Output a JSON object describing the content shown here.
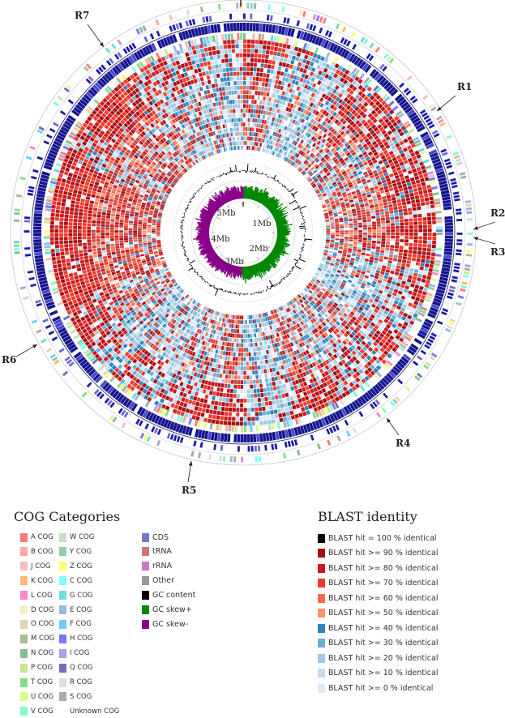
{
  "map": {
    "scale_labels": [
      "1Mb",
      "2Mb",
      "3Mb",
      "4Mb",
      "5Mb"
    ],
    "region_labels": [
      "R1",
      "R2",
      "R3",
      "R4",
      "R5",
      "R6",
      "R7"
    ],
    "colors": {
      "cds": "#14149a",
      "gc_content": "#000000",
      "gc_skew_plus": "#008800",
      "gc_skew_minus": "#880088",
      "ring_line": "#bbbbbb"
    }
  },
  "cog_legend": {
    "title": "COG Categories",
    "items": [
      {
        "label": "A COG",
        "color": "#ff7b7b"
      },
      {
        "label": "B COG",
        "color": "#ffaa9c"
      },
      {
        "label": "J COG",
        "color": "#f7bcc3"
      },
      {
        "label": "K COG",
        "color": "#ffb876"
      },
      {
        "label": "L COG",
        "color": "#ff86c8"
      },
      {
        "label": "D COG",
        "color": "#f6efc2"
      },
      {
        "label": "O COG",
        "color": "#ddd8b0"
      },
      {
        "label": "M COG",
        "color": "#a9bf8a"
      },
      {
        "label": "N COG",
        "color": "#86be8e"
      },
      {
        "label": "P COG",
        "color": "#c9e690"
      },
      {
        "label": "T COG",
        "color": "#88dd88"
      },
      {
        "label": "U COG",
        "color": "#d9ff8a"
      },
      {
        "label": "V COG",
        "color": "#80ffc8"
      },
      {
        "label": "W COG",
        "color": "#c8dec8"
      },
      {
        "label": "Y COG",
        "color": "#90d0a8"
      },
      {
        "label": "Z COG",
        "color": "#ffff70"
      },
      {
        "label": "C COG",
        "color": "#80ffff"
      },
      {
        "label": "G COG",
        "color": "#70dde0"
      },
      {
        "label": "E COG",
        "color": "#99bbdd"
      },
      {
        "label": "F COG",
        "color": "#70ccff"
      },
      {
        "label": "H COG",
        "color": "#7777ff"
      },
      {
        "label": "I COG",
        "color": "#aaa2e2"
      },
      {
        "label": "Q COG",
        "color": "#7070b8"
      },
      {
        "label": "R COG",
        "color": "#dddddd"
      },
      {
        "label": "S COG",
        "color": "#aaaaaa"
      },
      {
        "label": "Unknown COG",
        "color": ""
      }
    ],
    "features": [
      {
        "label": "CDS",
        "color": "#7777cc"
      },
      {
        "label": "tRNA",
        "color": "#cc7777"
      },
      {
        "label": "rRNA",
        "color": "#cc77cc"
      },
      {
        "label": "Other",
        "color": "#999999"
      },
      {
        "label": "GC content",
        "color": "#000000"
      },
      {
        "label": "GC skew+",
        "color": "#008800"
      },
      {
        "label": "GC skew-",
        "color": "#880088"
      }
    ]
  },
  "blast_legend": {
    "title": "BLAST identity",
    "items": [
      {
        "label": "BLAST hit = 100 % identical",
        "color": "#000000"
      },
      {
        "label": "BLAST hit >= 90 % identical",
        "color": "#a50f15"
      },
      {
        "label": "BLAST hit >= 80 % identical",
        "color": "#cb181d"
      },
      {
        "label": "BLAST hit >= 70 % identical",
        "color": "#ef3b2c"
      },
      {
        "label": "BLAST hit >= 60 % identical",
        "color": "#fb6a4a"
      },
      {
        "label": "BLAST hit >= 50 % identical",
        "color": "#fc9272"
      },
      {
        "label": "BLAST hit >= 40 % identical",
        "color": "#3182bd"
      },
      {
        "label": "BLAST hit >= 30 % identical",
        "color": "#6baed6"
      },
      {
        "label": "BLAST hit >= 20 % identical",
        "color": "#9ecae1"
      },
      {
        "label": "BLAST hit >= 10 % identical",
        "color": "#c6dbef"
      },
      {
        "label": "BLAST hit >= 0 % identical",
        "color": "#deebf7"
      }
    ]
  }
}
